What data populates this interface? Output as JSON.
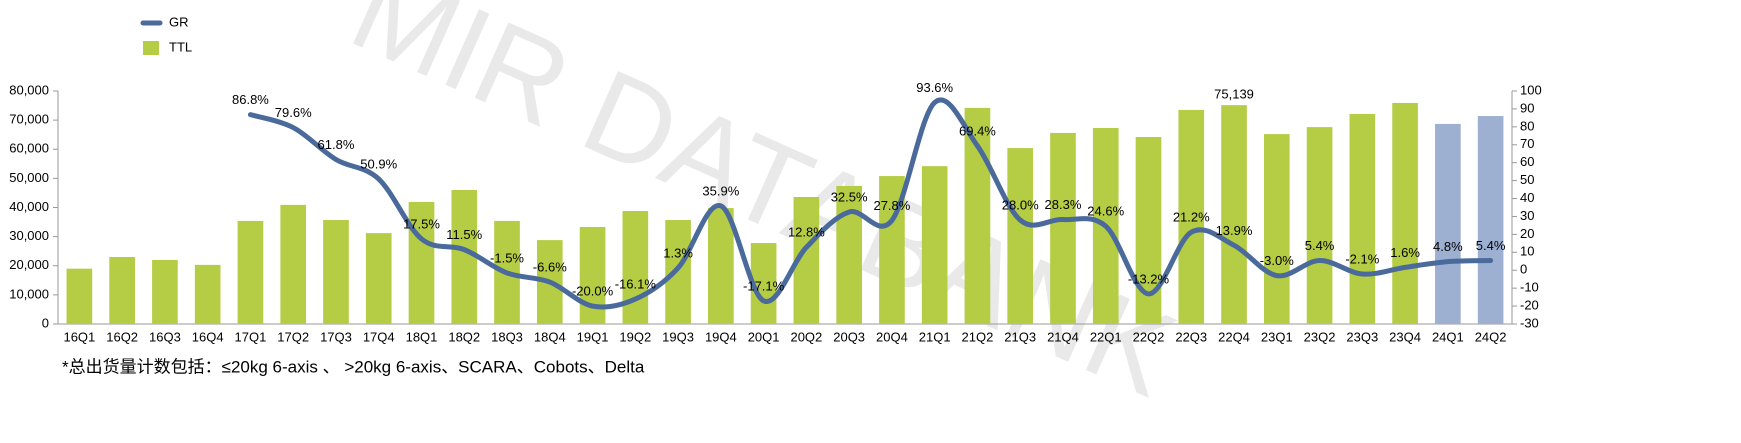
{
  "chart_data": {
    "type": "bar_line",
    "watermark": "MIR DATABANK",
    "footnote": "*总出货量计数包括：≤20kg 6-axis 、 >20kg 6-axis、SCARA、Cobots、Delta",
    "categories": [
      "16Q1",
      "16Q2",
      "16Q3",
      "16Q4",
      "17Q1",
      "17Q2",
      "17Q3",
      "17Q4",
      "18Q1",
      "18Q2",
      "18Q3",
      "18Q4",
      "19Q1",
      "19Q2",
      "19Q3",
      "19Q4",
      "20Q1",
      "20Q2",
      "20Q3",
      "20Q4",
      "21Q1",
      "21Q2",
      "21Q3",
      "21Q4",
      "22Q1",
      "22Q2",
      "22Q3",
      "22Q4",
      "23Q1",
      "23Q2",
      "23Q3",
      "23Q4",
      "24Q1",
      "24Q2"
    ],
    "series": [
      {
        "name": "GR",
        "type": "line",
        "axis": "y2",
        "color": "#4a6a9c",
        "values": [
          null,
          null,
          null,
          null,
          86.8,
          79.6,
          61.8,
          50.9,
          17.5,
          11.5,
          -1.5,
          -6.6,
          -20.0,
          -16.1,
          1.3,
          35.9,
          -17.1,
          12.8,
          32.5,
          27.8,
          93.6,
          69.4,
          28.0,
          28.3,
          24.6,
          -13.2,
          21.2,
          13.9,
          -3.0,
          5.4,
          -2.1,
          1.6,
          4.8,
          5.4
        ],
        "value_labels": [
          null,
          null,
          null,
          null,
          "86.8%",
          "79.6%",
          "61.8%",
          "50.9%",
          "17.5%",
          "11.5%",
          "-1.5%",
          "-6.6%",
          "-20.0%",
          "-16.1%",
          "1.3%",
          "35.9%",
          "-17.1%",
          "12.8%",
          "32.5%",
          "27.8%",
          "93.6%",
          "69.4%",
          "28.0%",
          "28.3%",
          "24.6%",
          "-13.2%",
          "21.2%",
          "13.9%",
          "-3.0%",
          "5.4%",
          "-2.1%",
          "1.6%",
          "4.8%",
          "5.4%"
        ]
      },
      {
        "name": "TTL",
        "type": "bar",
        "color": "#b5cc45",
        "colors": [
          "#b5cc45",
          "#b5cc45",
          "#b5cc45",
          "#b5cc45",
          "#b5cc45",
          "#b5cc45",
          "#b5cc45",
          "#b5cc45",
          "#b5cc45",
          "#b5cc45",
          "#b5cc45",
          "#b5cc45",
          "#b5cc45",
          "#b5cc45",
          "#b5cc45",
          "#b5cc45",
          "#b5cc45",
          "#b5cc45",
          "#b5cc45",
          "#b5cc45",
          "#b5cc45",
          "#b5cc45",
          "#b5cc45",
          "#b5cc45",
          "#b5cc45",
          "#b5cc45",
          "#b5cc45",
          "#b5cc45",
          "#b5cc45",
          "#b5cc45",
          "#b5cc45",
          "#b5cc45",
          "#9db0d2",
          "#9db0d2"
        ],
        "values": [
          19000,
          23000,
          22000,
          20300,
          35400,
          40900,
          35700,
          31200,
          41900,
          46000,
          35400,
          28800,
          33300,
          38800,
          35700,
          39800,
          27800,
          43600,
          47400,
          50800,
          54200,
          74200,
          60400,
          65600,
          67300,
          64200,
          73500,
          75139,
          65200,
          67600,
          72100,
          75900,
          68700,
          71400
        ],
        "value_labels": [
          null,
          null,
          null,
          null,
          null,
          null,
          null,
          null,
          null,
          null,
          null,
          null,
          null,
          null,
          null,
          null,
          null,
          null,
          null,
          null,
          null,
          null,
          null,
          null,
          null,
          null,
          null,
          "75,139",
          null,
          null,
          null,
          null,
          null,
          null
        ]
      }
    ],
    "ylim": [
      0,
      80000
    ],
    "yticks": [
      0,
      {
        "value": 10000,
        "label": "10,000"
      },
      {
        "value": 20000,
        "label": "20,000"
      },
      {
        "value": 30000,
        "label": "30,000"
      },
      {
        "value": 40000,
        "label": "40,000"
      },
      {
        "value": 50000,
        "label": "50,000"
      },
      {
        "value": 60000,
        "label": "60,000"
      },
      {
        "value": 70000,
        "label": "70,000"
      },
      {
        "value": 80000,
        "label": "80,000"
      }
    ],
    "y2lim": [
      -30,
      100
    ],
    "y2ticks": [
      -30,
      -20,
      -10,
      0,
      10,
      20,
      30,
      40,
      50,
      60,
      70,
      80,
      90,
      100
    ]
  }
}
